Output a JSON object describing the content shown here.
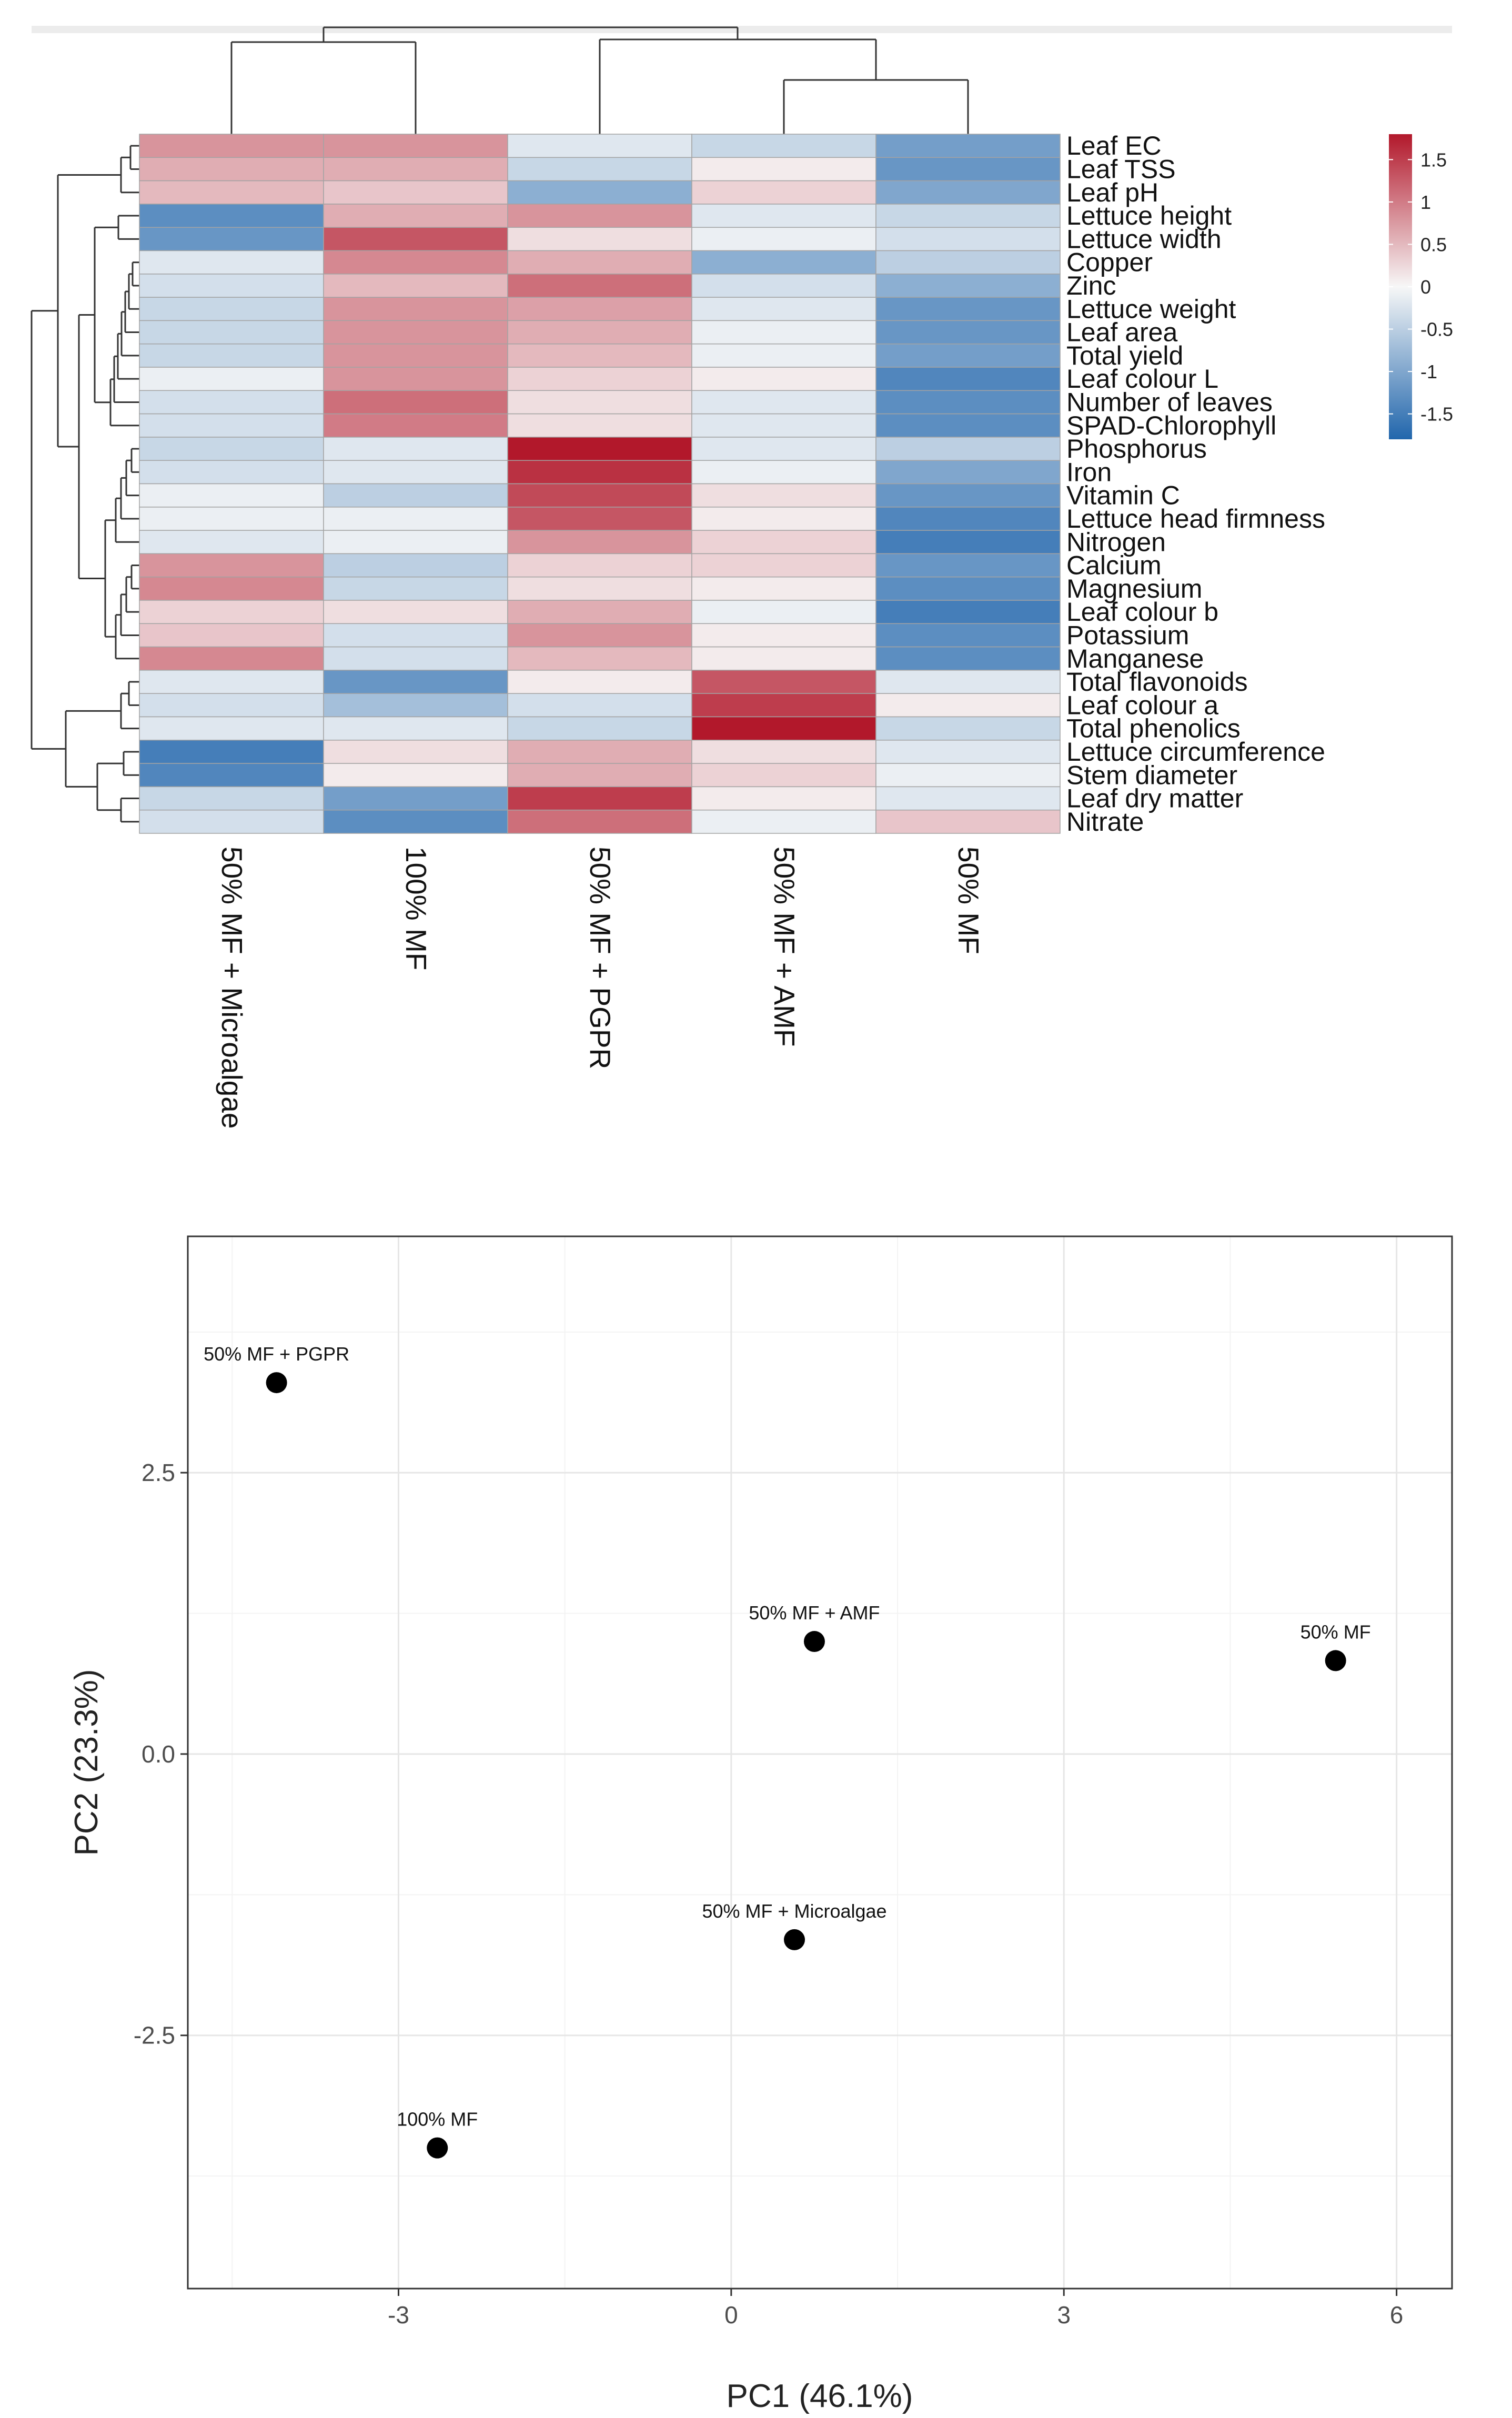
{
  "chart_data": [
    {
      "type": "heatmap",
      "title": "",
      "columns": [
        "50% MF + Microalgae",
        "100% MF",
        "50% MF + PGPR",
        "50% MF + AMF",
        "50% MF"
      ],
      "rows": [
        "Leaf EC",
        "Leaf TSS",
        "Leaf pH",
        "Lettuce height",
        "Lettuce width",
        "Copper",
        "Zinc",
        "Lettuce weight",
        "Leaf area",
        "Total yield",
        "Leaf colour L",
        "Number of leaves",
        "SPAD-Chlorophyll",
        "Phosphorus",
        "Iron",
        "Vitamin C",
        "Lettuce head firmness",
        "Nitrogen",
        "Calcium",
        "Magnesium",
        "Leaf colour b",
        "Potassium",
        "Manganese",
        "Total flavonoids",
        "Leaf colour a",
        "Total phenolics",
        "Lettuce circumference",
        "Stem diameter",
        "Leaf dry matter",
        "Nitrate"
      ],
      "values": [
        [
          0.8,
          0.8,
          -0.2,
          -0.4,
          -1.1
        ],
        [
          0.6,
          0.6,
          -0.4,
          0.1,
          -1.2
        ],
        [
          0.5,
          0.4,
          -0.9,
          0.3,
          -1.0
        ],
        [
          -1.3,
          0.6,
          0.8,
          -0.2,
          -0.4
        ],
        [
          -1.2,
          1.3,
          0.2,
          -0.1,
          -0.3
        ],
        [
          -0.2,
          0.9,
          0.6,
          -0.9,
          -0.5
        ],
        [
          -0.3,
          0.5,
          1.1,
          -0.3,
          -0.9
        ],
        [
          -0.4,
          0.8,
          0.7,
          -0.2,
          -1.2
        ],
        [
          -0.4,
          0.8,
          0.6,
          -0.1,
          -1.2
        ],
        [
          -0.4,
          0.8,
          0.5,
          -0.1,
          -1.1
        ],
        [
          -0.1,
          0.8,
          0.3,
          0.1,
          -1.4
        ],
        [
          -0.3,
          1.1,
          0.2,
          -0.2,
          -1.3
        ],
        [
          -0.3,
          1.0,
          0.2,
          -0.2,
          -1.3
        ],
        [
          -0.4,
          -0.2,
          1.8,
          -0.2,
          -0.5
        ],
        [
          -0.3,
          -0.2,
          1.6,
          -0.1,
          -1.0
        ],
        [
          -0.1,
          -0.5,
          1.4,
          0.2,
          -1.2
        ],
        [
          -0.1,
          -0.1,
          1.3,
          0.1,
          -1.4
        ],
        [
          -0.2,
          -0.1,
          0.8,
          0.3,
          -1.5
        ],
        [
          0.8,
          -0.5,
          0.3,
          0.3,
          -1.2
        ],
        [
          0.9,
          -0.4,
          0.2,
          0.1,
          -1.3
        ],
        [
          0.3,
          0.2,
          0.6,
          -0.1,
          -1.5
        ],
        [
          0.4,
          -0.3,
          0.8,
          0.1,
          -1.3
        ],
        [
          0.9,
          -0.3,
          0.5,
          0.1,
          -1.3
        ],
        [
          -0.2,
          -1.2,
          0.1,
          1.3,
          -0.2
        ],
        [
          -0.3,
          -0.7,
          -0.3,
          1.5,
          0.1
        ],
        [
          -0.2,
          -0.2,
          -0.4,
          1.8,
          -0.4
        ],
        [
          -1.5,
          0.2,
          0.6,
          0.2,
          -0.2
        ],
        [
          -1.4,
          0.1,
          0.6,
          0.3,
          -0.1
        ],
        [
          -0.4,
          -1.1,
          1.5,
          0.1,
          -0.2
        ],
        [
          -0.3,
          -1.3,
          1.1,
          -0.1,
          0.4
        ]
      ],
      "colorbar": {
        "ticks": [
          "1.5",
          "1",
          "0.5",
          "0",
          "-0.5",
          "-1",
          "-1.5"
        ],
        "tick_values": [
          1.5,
          1,
          0.5,
          0,
          -0.5,
          -1,
          -1.5
        ],
        "range": [
          -1.8,
          1.8
        ],
        "low_color": "#2166ac",
        "mid_color": "#f7f7f7",
        "high_color": "#b2182b"
      }
    },
    {
      "type": "scatter",
      "title": "",
      "xlabel": "PC1 (46.1%)",
      "ylabel": "PC2 (23.3%)",
      "xlim": [
        -4.9,
        6.5
      ],
      "ylim": [
        -4.75,
        4.6
      ],
      "x_ticks": [
        -3,
        0,
        3,
        6
      ],
      "x_tick_labels": [
        "-3",
        "0",
        "3",
        "6"
      ],
      "y_ticks": [
        2.5,
        0,
        -2.5
      ],
      "y_tick_labels": [
        "2.5",
        "0.0",
        "-2.5"
      ],
      "points": [
        {
          "label": "50% MF + PGPR",
          "x": -4.1,
          "y": 3.3
        },
        {
          "label": "50% MF + AMF",
          "x": 0.75,
          "y": 1.0
        },
        {
          "label": "50% MF",
          "x": 5.45,
          "y": 0.83
        },
        {
          "label": "50% MF + Microalgae",
          "x": 0.57,
          "y": -1.65
        },
        {
          "label": "100% MF",
          "x": -2.65,
          "y": -3.5
        }
      ],
      "point_color": "#000000",
      "grid": true
    }
  ]
}
